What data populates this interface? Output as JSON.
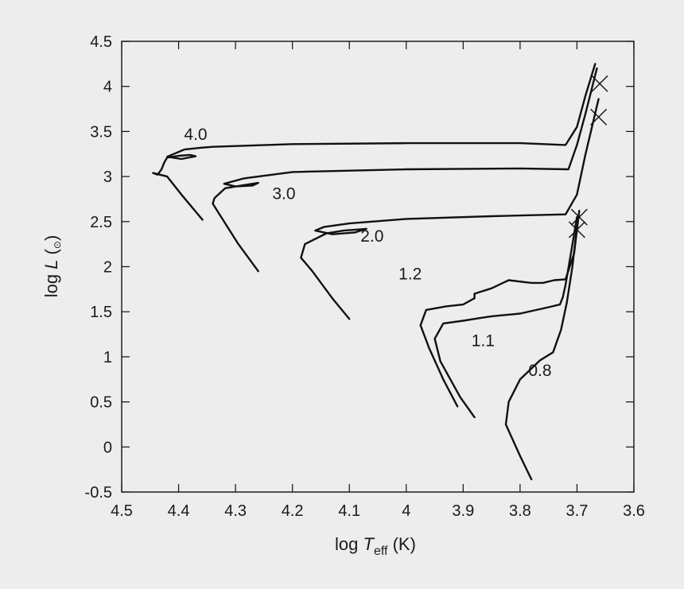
{
  "chart_data": {
    "type": "line",
    "xlabel": {
      "prefix": "log ",
      "symbol": "T",
      "subscript": "eff",
      "suffix": " (K)"
    },
    "ylabel": {
      "prefix": "log ",
      "symbol": "L",
      "open": " (",
      "subscript": "⊙",
      "close": ")"
    },
    "xlim": [
      4.5,
      3.6
    ],
    "ylim": [
      -0.5,
      4.5
    ],
    "xticks": [
      "4.5",
      "4.4",
      "4.3",
      "4.2",
      "4.1",
      "4",
      "3.9",
      "3.8",
      "3.7",
      "3.6"
    ],
    "yticks": [
      "-0.5",
      "0",
      "0.5",
      "1",
      "1.5",
      "2",
      "2.5",
      "3",
      "3.5",
      "4",
      "4.5"
    ],
    "grid": false,
    "colors": {
      "line": "#111111",
      "background": "#ededed"
    },
    "series": [
      {
        "name": "4.0",
        "label_pos": [
          4.37,
          3.47
        ],
        "values": [
          [
            4.358,
            2.52
          ],
          [
            4.395,
            2.8
          ],
          [
            4.42,
            3.0
          ],
          [
            4.445,
            3.04
          ],
          [
            4.437,
            3.02
          ],
          [
            4.43,
            3.08
          ],
          [
            4.425,
            3.16
          ],
          [
            4.42,
            3.21
          ],
          [
            4.4,
            3.23
          ],
          [
            4.38,
            3.24
          ],
          [
            4.37,
            3.225
          ],
          [
            4.395,
            3.195
          ],
          [
            4.42,
            3.22
          ],
          [
            4.39,
            3.3
          ],
          [
            4.36,
            3.32
          ],
          [
            4.34,
            3.33
          ],
          [
            4.2,
            3.36
          ],
          [
            4.0,
            3.37
          ],
          [
            3.8,
            3.37
          ],
          [
            3.72,
            3.35
          ],
          [
            3.7,
            3.55
          ],
          [
            3.685,
            3.9
          ],
          [
            3.668,
            4.25
          ]
        ]
      },
      {
        "name": "3.0",
        "label_pos": [
          4.215,
          2.81
        ],
        "values": [
          [
            4.26,
            1.95
          ],
          [
            4.295,
            2.25
          ],
          [
            4.33,
            2.6
          ],
          [
            4.34,
            2.7
          ],
          [
            4.337,
            2.76
          ],
          [
            4.318,
            2.87
          ],
          [
            4.29,
            2.9
          ],
          [
            4.26,
            2.93
          ],
          [
            4.27,
            2.9
          ],
          [
            4.3,
            2.89
          ],
          [
            4.32,
            2.92
          ],
          [
            4.285,
            2.98
          ],
          [
            4.26,
            3.0
          ],
          [
            4.2,
            3.05
          ],
          [
            4.0,
            3.08
          ],
          [
            3.8,
            3.09
          ],
          [
            3.715,
            3.08
          ],
          [
            3.7,
            3.35
          ],
          [
            3.685,
            3.7
          ],
          [
            3.665,
            4.2
          ]
        ]
      },
      {
        "name": "2.0",
        "label_pos": [
          4.06,
          2.34
        ],
        "values": [
          [
            4.1,
            1.42
          ],
          [
            4.13,
            1.65
          ],
          [
            4.165,
            1.95
          ],
          [
            4.185,
            2.1
          ],
          [
            4.178,
            2.25
          ],
          [
            4.14,
            2.37
          ],
          [
            4.11,
            2.4
          ],
          [
            4.07,
            2.42
          ],
          [
            4.09,
            2.38
          ],
          [
            4.13,
            2.36
          ],
          [
            4.16,
            2.4
          ],
          [
            4.145,
            2.44
          ],
          [
            4.1,
            2.48
          ],
          [
            4.0,
            2.53
          ],
          [
            3.85,
            2.56
          ],
          [
            3.72,
            2.58
          ],
          [
            3.7,
            2.8
          ],
          [
            3.685,
            3.25
          ],
          [
            3.662,
            3.86
          ]
        ]
      },
      {
        "name": "1.2",
        "label_pos": [
          3.993,
          1.92
        ],
        "values": [
          [
            3.91,
            0.45
          ],
          [
            3.935,
            0.75
          ],
          [
            3.96,
            1.1
          ],
          [
            3.975,
            1.35
          ],
          [
            3.965,
            1.52
          ],
          [
            3.93,
            1.56
          ],
          [
            3.9,
            1.58
          ],
          [
            3.88,
            1.65
          ],
          [
            3.88,
            1.7
          ],
          [
            3.85,
            1.76
          ],
          [
            3.82,
            1.85
          ],
          [
            3.78,
            1.82
          ],
          [
            3.76,
            1.82
          ],
          [
            3.74,
            1.85
          ],
          [
            3.72,
            1.86
          ],
          [
            3.705,
            2.15
          ],
          [
            3.696,
            2.62
          ]
        ]
      },
      {
        "name": "1.1",
        "label_pos": [
          3.865,
          1.18
        ],
        "values": [
          [
            3.88,
            0.33
          ],
          [
            3.905,
            0.55
          ],
          [
            3.94,
            0.95
          ],
          [
            3.95,
            1.2
          ],
          [
            3.935,
            1.37
          ],
          [
            3.9,
            1.4
          ],
          [
            3.87,
            1.43
          ],
          [
            3.85,
            1.45
          ],
          [
            3.8,
            1.48
          ],
          [
            3.75,
            1.55
          ],
          [
            3.73,
            1.58
          ],
          [
            3.725,
            1.66
          ],
          [
            3.72,
            1.8
          ],
          [
            3.712,
            2.1
          ],
          [
            3.7,
            2.55
          ]
        ]
      },
      {
        "name": "0.8",
        "label_pos": [
          3.765,
          0.85
        ],
        "values": [
          [
            3.78,
            -0.36
          ],
          [
            3.8,
            -0.1
          ],
          [
            3.825,
            0.25
          ],
          [
            3.82,
            0.5
          ],
          [
            3.8,
            0.75
          ],
          [
            3.765,
            0.96
          ],
          [
            3.742,
            1.05
          ],
          [
            3.728,
            1.3
          ],
          [
            3.718,
            1.6
          ],
          [
            3.708,
            2.0
          ],
          [
            3.7,
            2.45
          ]
        ]
      }
    ],
    "markers": [
      [
        3.66,
        4.03
      ],
      [
        3.662,
        3.66
      ],
      [
        3.696,
        2.55
      ],
      [
        3.7,
        2.41
      ]
    ]
  }
}
